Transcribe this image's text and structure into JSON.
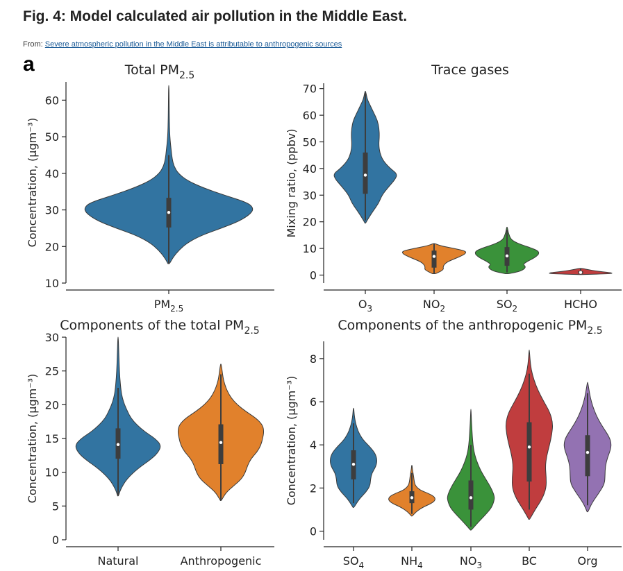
{
  "figure": {
    "title": "Fig. 4: Model calculated air pollution in the Middle East.",
    "source_prefix": "From:",
    "source_link": "Severe atmospheric pollution in the Middle East is attributable to anthropogenic sources",
    "panel_label": "a"
  },
  "chart_data": [
    {
      "type": "violin",
      "title_main": "Total PM",
      "title_sub": "2.5",
      "ylabel": "Concentration, (μgm⁻³)",
      "ylim": [
        10,
        65
      ],
      "yticks": [
        10,
        20,
        30,
        40,
        50,
        60
      ],
      "categories": [
        {
          "main": "PM",
          "sub": "2.5"
        }
      ],
      "series": [
        {
          "color": "#3274a1",
          "min": 15.3,
          "q1": 25.2,
          "median": 29.3,
          "q3": 33.3,
          "max": 64.0,
          "whisker_low": 15.3,
          "whisker_high": 45.0,
          "density": [
            [
              15.3,
              0.01
            ],
            [
              17,
              0.05
            ],
            [
              19,
              0.12
            ],
            [
              21,
              0.22
            ],
            [
              23,
              0.38
            ],
            [
              25,
              0.62
            ],
            [
              27,
              0.84
            ],
            [
              29,
              0.97
            ],
            [
              30.5,
              1.0
            ],
            [
              32,
              0.93
            ],
            [
              34,
              0.66
            ],
            [
              36,
              0.41
            ],
            [
              38,
              0.22
            ],
            [
              40,
              0.11
            ],
            [
              42,
              0.06
            ],
            [
              44,
              0.04
            ],
            [
              46,
              0.03
            ],
            [
              50,
              0.012
            ],
            [
              55,
              0.006
            ],
            [
              60,
              0.004
            ],
            [
              64,
              0.002
            ]
          ]
        }
      ]
    },
    {
      "type": "violin",
      "title_main": "Trace gases",
      "title_sub": "",
      "ylabel": "Mixing ratio, (ppbv)",
      "ylim": [
        -3,
        72
      ],
      "yticks": [
        0,
        10,
        20,
        30,
        40,
        50,
        60,
        70
      ],
      "categories": [
        {
          "main": "O",
          "sub": "3"
        },
        {
          "main": "NO",
          "sub": "2"
        },
        {
          "main": "SO",
          "sub": "2"
        },
        {
          "main": "HCHO",
          "sub": ""
        }
      ],
      "series": [
        {
          "color": "#3274a1",
          "min": 19.5,
          "q1": 30.5,
          "median": 37.5,
          "q3": 46.0,
          "max": 69.0,
          "whisker_low": 20.5,
          "whisker_high": 68.5,
          "density": [
            [
              19.5,
              0.01
            ],
            [
              21,
              0.08
            ],
            [
              24,
              0.24
            ],
            [
              27,
              0.42
            ],
            [
              30,
              0.52
            ],
            [
              33,
              0.72
            ],
            [
              36,
              0.94
            ],
            [
              38,
              1.0
            ],
            [
              40,
              0.78
            ],
            [
              43,
              0.55
            ],
            [
              46,
              0.45
            ],
            [
              49,
              0.42
            ],
            [
              52,
              0.44
            ],
            [
              55,
              0.43
            ],
            [
              58,
              0.38
            ],
            [
              61,
              0.26
            ],
            [
              64,
              0.14
            ],
            [
              66,
              0.06
            ],
            [
              69,
              0.01
            ]
          ]
        },
        {
          "color": "#e1812c",
          "min": 0.5,
          "q1": 2.8,
          "median": 7.0,
          "q3": 9.2,
          "max": 11.8,
          "whisker_low": 0.5,
          "whisker_high": 11.8,
          "density": [
            [
              0.5,
              0.05
            ],
            [
              2,
              0.3
            ],
            [
              3,
              0.28
            ],
            [
              4,
              0.32
            ],
            [
              5,
              0.42
            ],
            [
              6,
              0.62
            ],
            [
              7,
              0.82
            ],
            [
              8,
              0.98
            ],
            [
              9,
              1.0
            ],
            [
              10,
              0.62
            ],
            [
              11,
              0.2
            ],
            [
              11.8,
              0.03
            ]
          ]
        },
        {
          "color": "#3a923a",
          "min": 0.5,
          "q1": 3.5,
          "median": 7.2,
          "q3": 10.5,
          "max": 18.0,
          "whisker_low": 1.0,
          "whisker_high": 17.0,
          "density": [
            [
              0.5,
              0.05
            ],
            [
              1.5,
              0.45
            ],
            [
              3,
              0.6
            ],
            [
              4,
              0.5
            ],
            [
              5,
              0.62
            ],
            [
              6,
              0.78
            ],
            [
              7,
              0.92
            ],
            [
              8,
              1.0
            ],
            [
              9,
              0.98
            ],
            [
              10,
              0.8
            ],
            [
              11,
              0.55
            ],
            [
              12,
              0.32
            ],
            [
              13,
              0.17
            ],
            [
              14,
              0.1
            ],
            [
              15,
              0.07
            ],
            [
              16,
              0.04
            ],
            [
              18,
              0.01
            ]
          ]
        },
        {
          "color": "#c03d3e",
          "min": 0.2,
          "q1": 0.5,
          "median": 1.0,
          "q3": 1.5,
          "max": 2.5,
          "whisker_low": 0.2,
          "whisker_high": 2.5,
          "density": [
            [
              0.2,
              0.05
            ],
            [
              0.5,
              0.95
            ],
            [
              0.8,
              1.0
            ],
            [
              1.2,
              0.7
            ],
            [
              1.6,
              0.45
            ],
            [
              2.0,
              0.25
            ],
            [
              2.5,
              0.05
            ]
          ]
        }
      ]
    },
    {
      "type": "violin",
      "title_main": "Components of the total PM",
      "title_sub": "2.5",
      "ylabel": "Concentration, (μgm⁻³)",
      "ylim": [
        0,
        30
      ],
      "yticks": [
        0,
        5,
        10,
        15,
        20,
        25,
        30
      ],
      "categories": [
        {
          "main": "Natural",
          "sub": ""
        },
        {
          "main": "Anthropogenic",
          "sub": ""
        }
      ],
      "series": [
        {
          "color": "#3274a1",
          "min": 6.5,
          "q1": 12.0,
          "median": 14.1,
          "q3": 16.5,
          "max": 30.0,
          "whisker_low": 6.5,
          "whisker_high": 22.5,
          "density": [
            [
              6.5,
              0.01
            ],
            [
              7.5,
              0.06
            ],
            [
              9,
              0.2
            ],
            [
              10.5,
              0.45
            ],
            [
              12,
              0.78
            ],
            [
              13,
              0.94
            ],
            [
              14,
              1.0
            ],
            [
              15,
              0.86
            ],
            [
              16,
              0.62
            ],
            [
              17,
              0.44
            ],
            [
              18,
              0.3
            ],
            [
              19,
              0.22
            ],
            [
              20,
              0.15
            ],
            [
              21,
              0.1
            ],
            [
              22,
              0.07
            ],
            [
              24,
              0.04
            ],
            [
              26,
              0.025
            ],
            [
              28,
              0.015
            ],
            [
              30,
              0.005
            ]
          ]
        },
        {
          "color": "#e1812c",
          "min": 5.8,
          "q1": 11.2,
          "median": 14.4,
          "q3": 17.1,
          "max": 26.0,
          "whisker_low": 5.8,
          "whisker_high": 24.5,
          "density": [
            [
              5.8,
              0.01
            ],
            [
              7,
              0.12
            ],
            [
              8,
              0.3
            ],
            [
              9,
              0.48
            ],
            [
              10,
              0.57
            ],
            [
              11,
              0.62
            ],
            [
              12,
              0.7
            ],
            [
              13,
              0.84
            ],
            [
              14,
              0.93
            ],
            [
              15,
              0.97
            ],
            [
              16,
              1.0
            ],
            [
              17,
              0.97
            ],
            [
              18,
              0.82
            ],
            [
              19,
              0.58
            ],
            [
              20,
              0.38
            ],
            [
              21,
              0.24
            ],
            [
              22,
              0.15
            ],
            [
              23,
              0.09
            ],
            [
              24,
              0.05
            ],
            [
              26,
              0.01
            ]
          ]
        }
      ]
    },
    {
      "type": "violin",
      "title_main": "Components of the anthropogenic PM",
      "title_sub": "2.5",
      "ylabel": "Concentration, (μgm⁻³)",
      "ylim": [
        -0.4,
        8.8
      ],
      "yticks": [
        0,
        2,
        4,
        6,
        8
      ],
      "categories": [
        {
          "main": "SO",
          "sub": "4"
        },
        {
          "main": "NH",
          "sub": "4"
        },
        {
          "main": "NO",
          "sub": "3"
        },
        {
          "main": "BC",
          "sub": ""
        },
        {
          "main": "Org",
          "sub": ""
        }
      ],
      "series": [
        {
          "color": "#3274a1",
          "min": 1.1,
          "q1": 2.4,
          "median": 3.1,
          "q3": 3.75,
          "max": 5.7,
          "whisker_low": 1.3,
          "whisker_high": 5.0,
          "density": [
            [
              1.1,
              0.02
            ],
            [
              1.5,
              0.25
            ],
            [
              1.8,
              0.52
            ],
            [
              2.1,
              0.7
            ],
            [
              2.4,
              0.72
            ],
            [
              2.7,
              0.78
            ],
            [
              3.0,
              0.95
            ],
            [
              3.3,
              1.0
            ],
            [
              3.6,
              0.92
            ],
            [
              3.9,
              0.7
            ],
            [
              4.2,
              0.43
            ],
            [
              4.5,
              0.25
            ],
            [
              4.8,
              0.14
            ],
            [
              5.1,
              0.07
            ],
            [
              5.4,
              0.03
            ],
            [
              5.7,
              0.01
            ]
          ]
        },
        {
          "color": "#e1812c",
          "min": 0.7,
          "q1": 1.3,
          "median": 1.55,
          "q3": 1.85,
          "max": 3.05,
          "whisker_low": 0.8,
          "whisker_high": 2.7,
          "density": [
            [
              0.7,
              0.02
            ],
            [
              0.9,
              0.18
            ],
            [
              1.1,
              0.45
            ],
            [
              1.3,
              0.85
            ],
            [
              1.45,
              1.0
            ],
            [
              1.6,
              0.95
            ],
            [
              1.75,
              0.7
            ],
            [
              1.9,
              0.35
            ],
            [
              2.1,
              0.15
            ],
            [
              2.3,
              0.1
            ],
            [
              2.5,
              0.08
            ],
            [
              2.7,
              0.05
            ],
            [
              2.9,
              0.02
            ],
            [
              3.05,
              0.01
            ]
          ]
        },
        {
          "color": "#3a923a",
          "min": 0.05,
          "q1": 1.0,
          "median": 1.55,
          "q3": 2.35,
          "max": 5.65,
          "whisker_low": 0.2,
          "whisker_high": 4.0,
          "density": [
            [
              0.05,
              0.02
            ],
            [
              0.4,
              0.3
            ],
            [
              0.8,
              0.65
            ],
            [
              1.1,
              0.88
            ],
            [
              1.4,
              0.98
            ],
            [
              1.6,
              1.0
            ],
            [
              1.9,
              0.9
            ],
            [
              2.2,
              0.75
            ],
            [
              2.5,
              0.58
            ],
            [
              2.8,
              0.42
            ],
            [
              3.1,
              0.3
            ],
            [
              3.4,
              0.2
            ],
            [
              3.7,
              0.13
            ],
            [
              4.0,
              0.09
            ],
            [
              4.4,
              0.06
            ],
            [
              4.8,
              0.04
            ],
            [
              5.2,
              0.02
            ],
            [
              5.65,
              0.005
            ]
          ]
        },
        {
          "color": "#c03d3e",
          "min": 0.55,
          "q1": 2.3,
          "median": 3.9,
          "q3": 5.05,
          "max": 8.4,
          "whisker_low": 1.0,
          "whisker_high": 7.3,
          "density": [
            [
              0.55,
              0.02
            ],
            [
              1.0,
              0.25
            ],
            [
              1.5,
              0.55
            ],
            [
              2.0,
              0.72
            ],
            [
              2.5,
              0.72
            ],
            [
              3.0,
              0.68
            ],
            [
              3.5,
              0.74
            ],
            [
              4.0,
              0.86
            ],
            [
              4.5,
              0.96
            ],
            [
              5.0,
              1.0
            ],
            [
              5.5,
              0.88
            ],
            [
              6.0,
              0.62
            ],
            [
              6.5,
              0.38
            ],
            [
              7.0,
              0.2
            ],
            [
              7.5,
              0.08
            ],
            [
              8.0,
              0.03
            ],
            [
              8.4,
              0.005
            ]
          ]
        },
        {
          "color": "#9372b2",
          "min": 0.9,
          "q1": 2.55,
          "median": 3.65,
          "q3": 4.45,
          "max": 6.9,
          "whisker_low": 1.2,
          "whisker_high": 6.4,
          "density": [
            [
              0.9,
              0.02
            ],
            [
              1.3,
              0.18
            ],
            [
              1.8,
              0.5
            ],
            [
              2.2,
              0.72
            ],
            [
              2.6,
              0.74
            ],
            [
              3.0,
              0.75
            ],
            [
              3.4,
              0.84
            ],
            [
              3.8,
              0.98
            ],
            [
              4.1,
              1.0
            ],
            [
              4.4,
              0.9
            ],
            [
              4.8,
              0.66
            ],
            [
              5.2,
              0.44
            ],
            [
              5.6,
              0.28
            ],
            [
              6.0,
              0.16
            ],
            [
              6.4,
              0.08
            ],
            [
              6.9,
              0.01
            ]
          ]
        }
      ]
    }
  ]
}
